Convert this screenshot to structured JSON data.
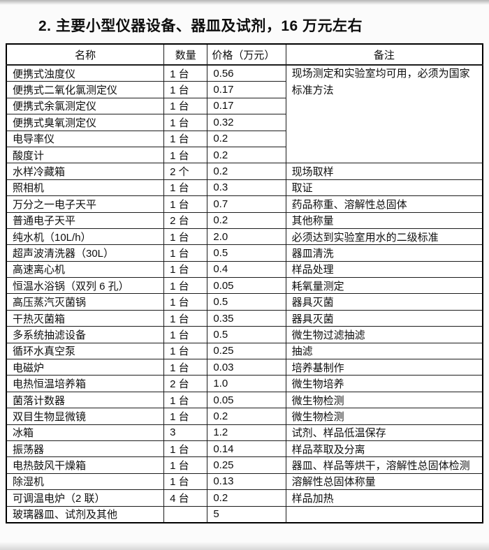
{
  "page": {
    "title": "2. 主要小型仪器设备、器皿及试剂，16 万元左右"
  },
  "table": {
    "headers": [
      "名称",
      "数量",
      "价格（万元）",
      "备注"
    ],
    "merged_remark": {
      "text": "现场测定和实验室均可用，必须为国家标准方法",
      "rowspan": 6
    },
    "rows": [
      {
        "name": "便携式浊度仪",
        "qty": "1 台",
        "price": "0.56",
        "remark": null
      },
      {
        "name": "便携式二氧化氯测定仪",
        "qty": "1 台",
        "price": "0.17",
        "remark": null
      },
      {
        "name": "便携式余氯测定仪",
        "qty": "1 台",
        "price": "0.17",
        "remark": null
      },
      {
        "name": "便携式臭氧测定仪",
        "qty": "1 台",
        "price": "0.32",
        "remark": null
      },
      {
        "name": "电导率仪",
        "qty": "1 台",
        "price": "0.2",
        "remark": null
      },
      {
        "name": "酸度计",
        "qty": "1 台",
        "price": "0.2",
        "remark": null
      },
      {
        "name": "水样冷藏箱",
        "qty": "2 个",
        "price": "0.2",
        "remark": "现场取样"
      },
      {
        "name": "照相机",
        "qty": "1 台",
        "price": "0.3",
        "remark": "取证"
      },
      {
        "name": "万分之一电子天平",
        "qty": "1 台",
        "price": "0.7",
        "remark": "药品称重、溶解性总固体"
      },
      {
        "name": "普通电子天平",
        "qty": "2 台",
        "price": "0.2",
        "remark": "其他称量"
      },
      {
        "name": "纯水机（10L/h）",
        "qty": "1 台",
        "price": "2.0",
        "remark": "必须达到实验室用水的二级标准"
      },
      {
        "name": "超声波清洗器（30L）",
        "qty": "1 台",
        "price": "0.5",
        "remark": "器皿清洗"
      },
      {
        "name": "高速离心机",
        "qty": "1 台",
        "price": "0.4",
        "remark": "样品处理"
      },
      {
        "name": "恒温水浴锅（双列 6 孔）",
        "qty": "1 台",
        "price": "0.05",
        "remark": "耗氧量测定"
      },
      {
        "name": "高压蒸汽灭菌锅",
        "qty": "1 台",
        "price": "0.5",
        "remark": "器具灭菌"
      },
      {
        "name": "干热灭菌箱",
        "qty": "1 台",
        "price": "0.35",
        "remark": "器具灭菌"
      },
      {
        "name": "多系统抽滤设备",
        "qty": "1 台",
        "price": "0.5",
        "remark": "微生物过滤抽滤"
      },
      {
        "name": "循环水真空泵",
        "qty": "1 台",
        "price": "0.25",
        "remark": "抽滤"
      },
      {
        "name": "电磁炉",
        "qty": "1 台",
        "price": "0.03",
        "remark": "培养基制作"
      },
      {
        "name": "电热恒温培养箱",
        "qty": "2 台",
        "price": "1.0",
        "remark": "微生物培养"
      },
      {
        "name": "菌落计数器",
        "qty": "1 台",
        "price": "0.05",
        "remark": "微生物检测"
      },
      {
        "name": "双目生物显微镜",
        "qty": "1 台",
        "price": "0.2",
        "remark": "微生物检测"
      },
      {
        "name": "冰箱",
        "qty": "3",
        "price": "1.2",
        "remark": "试剂、样品低温保存"
      },
      {
        "name": "振荡器",
        "qty": "1 台",
        "price": "0.14",
        "remark": "样品萃取及分离"
      },
      {
        "name": "电热鼓风干燥箱",
        "qty": "1 台",
        "price": "0.25",
        "remark": "器皿、样品等烘干，溶解性总固体检测"
      },
      {
        "name": "除湿机",
        "qty": "1 台",
        "price": "0.13",
        "remark": "溶解性总固体称量"
      },
      {
        "name": "可调温电炉（2 联）",
        "qty": "4 台",
        "price": "0.2",
        "remark": "样品加热"
      },
      {
        "name": "玻璃器皿、试剂及其他",
        "qty": "",
        "price": "5",
        "remark": ""
      }
    ]
  }
}
